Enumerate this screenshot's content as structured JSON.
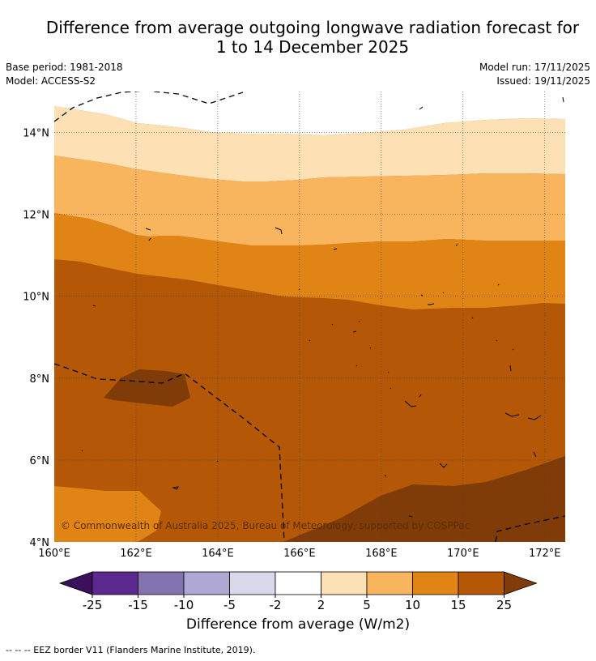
{
  "title_line1": "Difference from average outgoing longwave radiation forecast for",
  "title_line2": "1 to 14 December 2025",
  "base_period": "Base period: 1981-2018",
  "model": "Model: ACCESS-S2",
  "model_run": "Model run: 17/11/2025",
  "issued": "Issued: 19/11/2025",
  "copyright": "© Commonwealth of Australia 2025, Bureau of Meteorology, supported by COSPPac",
  "axes": {
    "lon_labels": [
      "160°E",
      "162°E",
      "164°E",
      "166°E",
      "168°E",
      "170°E",
      "172°E"
    ],
    "lat_labels": [
      "4°N",
      "6°N",
      "8°N",
      "10°N",
      "12°N",
      "14°N"
    ],
    "lon_range": [
      160,
      172.5
    ],
    "lat_range": [
      4,
      15
    ]
  },
  "colorbar": {
    "title": "Difference from average (W/m2)",
    "tick_labels": [
      "-25",
      "-15",
      "-10",
      "-5",
      "-2",
      "2",
      "5",
      "10",
      "15",
      "25"
    ],
    "colors": [
      "#3b0f5c",
      "#5c2a8e",
      "#8572b0",
      "#b0a8d4",
      "#d9d9ec",
      "#ffffff",
      "#fde0b4",
      "#f9b55e",
      "#e08416",
      "#b45807",
      "#7f3b08"
    ]
  },
  "legend": "--  --  -- EEZ border V11 (Flanders Marine Institute, 2019)."
}
